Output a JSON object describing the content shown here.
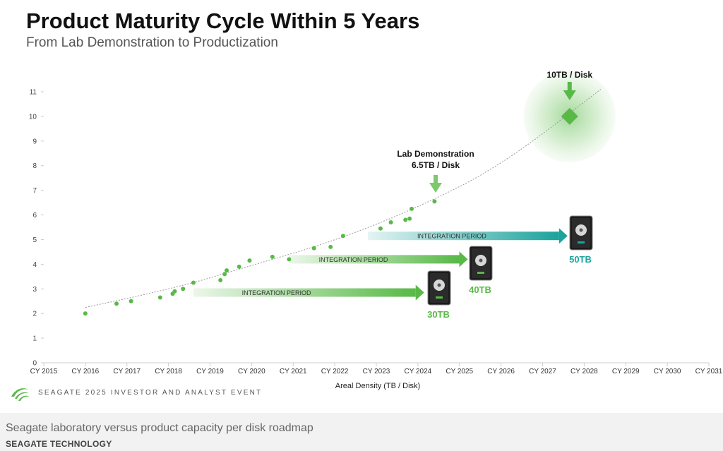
{
  "header": {
    "title": "Product Maturity Cycle Within 5 Years",
    "subtitle": "From Lab Demonstration to Productization"
  },
  "footer": {
    "event": "SEAGATE 2025 INVESTOR AND ANALYST EVENT",
    "logo_icon": "seagate-logo-icon"
  },
  "caption": {
    "text": "Seagate laboratory versus product capacity per disk roadmap",
    "credit": "SEAGATE TECHNOLOGY"
  },
  "colors": {
    "green": "#58b947",
    "teal": "#1ba39c",
    "axis": "#cccccc"
  },
  "chart_data": {
    "type": "scatter",
    "title": "Product Maturity Cycle Within 5 Years",
    "xlabel": "Areal Density (TB / Disk)",
    "ylabel": "",
    "xlim": [
      2015,
      2031
    ],
    "ylim": [
      0,
      11
    ],
    "x_ticks": [
      "CY 2015",
      "CY 2016",
      "CY 2017",
      "CY 2018",
      "CY 2019",
      "CY 2020",
      "CY 2021",
      "CY 2022",
      "CY 2023",
      "CY 2024",
      "CY 2025",
      "CY 2026",
      "CY 2027",
      "CY 2028",
      "CY 2029",
      "CY 2030",
      "CY 2031"
    ],
    "y_ticks": [
      0,
      1,
      2,
      3,
      4,
      5,
      6,
      7,
      8,
      9,
      10,
      11
    ],
    "grid": false,
    "points": [
      {
        "x": 2016.0,
        "y": 2.0
      },
      {
        "x": 2016.75,
        "y": 2.4
      },
      {
        "x": 2017.1,
        "y": 2.5
      },
      {
        "x": 2017.8,
        "y": 2.65
      },
      {
        "x": 2018.1,
        "y": 2.8
      },
      {
        "x": 2018.15,
        "y": 2.9
      },
      {
        "x": 2018.35,
        "y": 3.0
      },
      {
        "x": 2018.6,
        "y": 3.25
      },
      {
        "x": 2019.25,
        "y": 3.35
      },
      {
        "x": 2019.35,
        "y": 3.6
      },
      {
        "x": 2019.4,
        "y": 3.75
      },
      {
        "x": 2019.7,
        "y": 3.9
      },
      {
        "x": 2019.95,
        "y": 4.15
      },
      {
        "x": 2020.5,
        "y": 4.3
      },
      {
        "x": 2020.9,
        "y": 4.2
      },
      {
        "x": 2021.5,
        "y": 4.65
      },
      {
        "x": 2021.9,
        "y": 4.7
      },
      {
        "x": 2022.2,
        "y": 5.15
      },
      {
        "x": 2023.1,
        "y": 5.45
      },
      {
        "x": 2023.35,
        "y": 5.7
      },
      {
        "x": 2023.7,
        "y": 5.8
      },
      {
        "x": 2023.8,
        "y": 5.85
      },
      {
        "x": 2023.85,
        "y": 6.25
      },
      {
        "x": 2024.4,
        "y": 6.55
      }
    ],
    "trend": {
      "x": [
        2016,
        2018,
        2020,
        2022,
        2024,
        2026,
        2028.4
      ],
      "y": [
        2.25,
        2.95,
        3.95,
        4.95,
        6.3,
        8.0,
        11.1
      ]
    },
    "target_point": {
      "x": 2027.65,
      "y": 10.0,
      "label": "10TB / Disk"
    },
    "lab_demo": {
      "x": 2024.4,
      "y": 6.55,
      "label_line1": "Lab Demonstration",
      "label_line2": "6.5TB / Disk"
    },
    "integration_periods": [
      {
        "label": "INTEGRATION PERIOD",
        "x_start": 2018.6,
        "x_end": 2024.15,
        "y": 2.85,
        "product": "30TB",
        "color": "#58b947"
      },
      {
        "label": "INTEGRATION PERIOD",
        "x_start": 2020.9,
        "x_end": 2025.2,
        "y": 4.2,
        "product": "40TB",
        "color": "#58b947"
      },
      {
        "label": "INTEGRATION PERIOD",
        "x_start": 2022.8,
        "x_end": 2027.6,
        "y": 5.15,
        "product": "50TB",
        "color": "#1ba39c"
      }
    ]
  }
}
